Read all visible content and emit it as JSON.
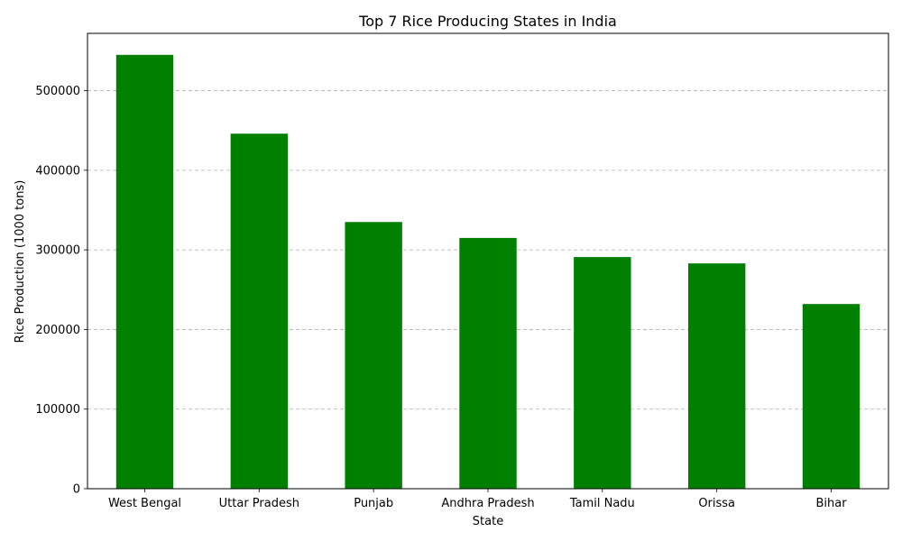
{
  "chart_data": {
    "type": "bar",
    "title": "Top 7 Rice Producing States in India",
    "xlabel": "State",
    "ylabel": "Rice Production (1000 tons)",
    "categories": [
      "West Bengal",
      "Uttar Pradesh",
      "Punjab",
      "Andhra Pradesh",
      "Tamil Nadu",
      "Orissa",
      "Bihar"
    ],
    "values": [
      545000,
      446000,
      335000,
      315000,
      291000,
      283000,
      232000
    ],
    "ylim": [
      0,
      572000
    ],
    "yticks": [
      0,
      100000,
      200000,
      300000,
      400000,
      500000
    ],
    "grid": "y-dashed",
    "bar_color": "#008000",
    "grid_color": "#b0b0b0"
  }
}
